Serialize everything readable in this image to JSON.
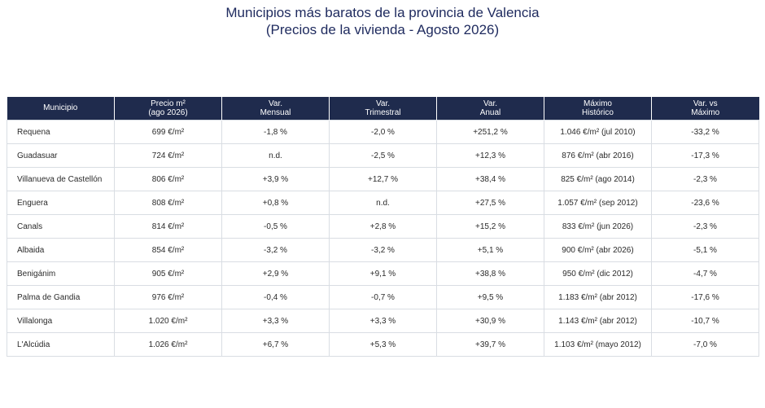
{
  "title": {
    "line1": "Municipios más baratos de la provincia de Valencia",
    "line2": "(Precios de la vivienda - Agosto 2026)"
  },
  "colors": {
    "header_bg": "#1f2b4d",
    "negative": "#c62828",
    "positive": "#2e7d32",
    "title": "#1e2a5e"
  },
  "headers": [
    [
      "Municipio"
    ],
    [
      "Precio m²",
      "(ago 2026)"
    ],
    [
      "Var.",
      "Mensual"
    ],
    [
      "Var.",
      "Trimestral"
    ],
    [
      "Var.",
      "Anual"
    ],
    [
      "Máximo",
      "Histórico"
    ],
    [
      "Var. vs",
      "Máximo"
    ]
  ],
  "rows": [
    {
      "municipio": "Requena",
      "precio": "699 €/m²",
      "mensual": "-1,8 %",
      "trimestral": "-2,0 %",
      "anual": "+251,2 %",
      "maximo": "1.046 €/m² (jul 2010)",
      "vs_maximo": "-33,2 %"
    },
    {
      "municipio": "Guadasuar",
      "precio": "724 €/m²",
      "mensual": "n.d.",
      "trimestral": "-2,5 %",
      "anual": "+12,3 %",
      "maximo": "876 €/m² (abr 2016)",
      "vs_maximo": "-17,3 %"
    },
    {
      "municipio": "Villanueva de Castellón",
      "precio": "806 €/m²",
      "mensual": "+3,9 %",
      "trimestral": "+12,7 %",
      "anual": "+38,4 %",
      "maximo": "825 €/m² (ago 2014)",
      "vs_maximo": "-2,3 %"
    },
    {
      "municipio": "Enguera",
      "precio": "808 €/m²",
      "mensual": "+0,8 %",
      "trimestral": "n.d.",
      "anual": "+27,5 %",
      "maximo": "1.057 €/m² (sep 2012)",
      "vs_maximo": "-23,6 %"
    },
    {
      "municipio": "Canals",
      "precio": "814 €/m²",
      "mensual": "-0,5 %",
      "trimestral": "+2,8 %",
      "anual": "+15,2 %",
      "maximo": "833 €/m² (jun 2026)",
      "vs_maximo": "-2,3 %"
    },
    {
      "municipio": "Albaida",
      "precio": "854 €/m²",
      "mensual": "-3,2 %",
      "trimestral": "-3,2 %",
      "anual": "+5,1 %",
      "maximo": "900 €/m² (abr 2026)",
      "vs_maximo": "-5,1 %"
    },
    {
      "municipio": "Benigánim",
      "precio": "905 €/m²",
      "mensual": "+2,9 %",
      "trimestral": "+9,1 %",
      "anual": "+38,8 %",
      "maximo": "950 €/m² (dic 2012)",
      "vs_maximo": "-4,7 %"
    },
    {
      "municipio": "Palma de Gandia",
      "precio": "976 €/m²",
      "mensual": "-0,4 %",
      "trimestral": "-0,7 %",
      "anual": "+9,5 %",
      "maximo": "1.183 €/m² (abr 2012)",
      "vs_maximo": "-17,6 %"
    },
    {
      "municipio": "Villalonga",
      "precio": "1.020 €/m²",
      "mensual": "+3,3 %",
      "trimestral": "+3,3 %",
      "anual": "+30,9 %",
      "maximo": "1.143 €/m² (abr 2012)",
      "vs_maximo": "-10,7 %"
    },
    {
      "municipio": "L'Alcúdia",
      "precio": "1.026 €/m²",
      "mensual": "+6,7 %",
      "trimestral": "+5,3 %",
      "anual": "+39,7 %",
      "maximo": "1.103 €/m² (mayo 2012)",
      "vs_maximo": "-7,0 %"
    }
  ]
}
